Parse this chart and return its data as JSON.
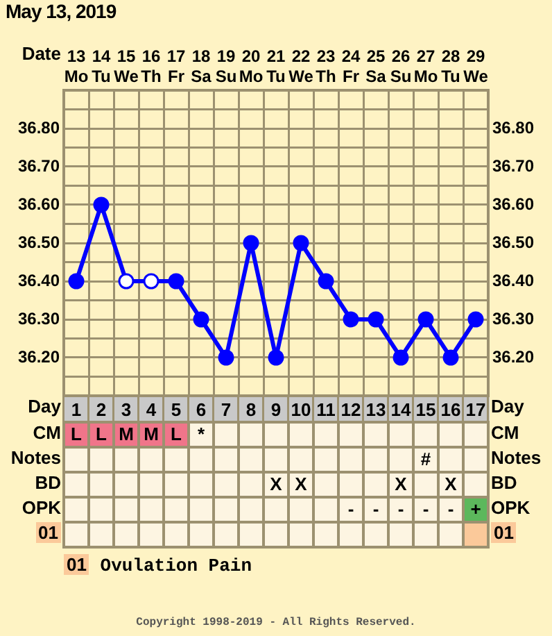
{
  "chart_data": [
    {
      "type": "line",
      "title": "May 13, 2019",
      "xlabel": "Day",
      "x2label": "Date",
      "x": [
        1,
        2,
        3,
        4,
        5,
        6,
        7,
        8,
        9,
        10,
        11,
        12,
        13,
        14,
        15,
        16,
        17
      ],
      "series": [
        {
          "color": "#0000ff",
          "colors": [
            "#0000ff",
            "#0000ff",
            "#ffffff",
            "#ffffff",
            "#0000ff",
            "#0000ff",
            "#0000ff",
            "#0000ff",
            "#0000ff",
            "#0000ff",
            "#0000ff",
            "#0000ff",
            "#0000ff",
            "#0000ff",
            "#0000ff",
            "#0000ff",
            "#0000ff"
          ],
          "values": [
            36.4,
            36.6,
            36.4,
            36.4,
            36.4,
            36.3,
            36.2,
            36.5,
            36.2,
            36.5,
            36.4,
            36.3,
            36.3,
            36.2,
            36.3,
            36.2,
            36.3
          ]
        }
      ],
      "xlim": [
        0.5,
        17.5
      ],
      "xticks": [
        {
          "value": 0.5,
          "label": null
        },
        1,
        {
          "value": 1.5,
          "label": null
        },
        2,
        {
          "value": 2.5,
          "label": null
        },
        3,
        {
          "value": 3.5,
          "label": null
        },
        4,
        {
          "value": 4.5,
          "label": null
        },
        5,
        {
          "value": 5.5,
          "label": null
        },
        6,
        {
          "value": 6.5,
          "label": null
        },
        7,
        {
          "value": 7.5,
          "label": null
        },
        8,
        {
          "value": 8.5,
          "label": null
        },
        9,
        {
          "value": 9.5,
          "label": null
        },
        10,
        {
          "value": 10.5,
          "label": null
        },
        11,
        {
          "value": 11.5,
          "label": null
        },
        12,
        {
          "value": 12.5,
          "label": null
        },
        13,
        {
          "value": 13.5,
          "label": null
        },
        14,
        {
          "value": 14.5,
          "label": null
        },
        15,
        {
          "value": 15.5,
          "label": null
        },
        16,
        {
          "value": 16.5,
          "label": null
        },
        17,
        {
          "value": 17.5,
          "label": null
        }
      ],
      "x2lim": [
        "2019-05-12T12:00",
        "2019-05-29T12:00"
      ],
      "x2ticks": [
        {
          "value": "2019-05-13",
          "label": "13 Mo"
        },
        {
          "value": "2019-05-14",
          "label": "14 Tu"
        },
        {
          "value": "2019-05-15",
          "label": "15 We"
        },
        {
          "value": "2019-05-16",
          "label": "16 Th"
        },
        {
          "value": "2019-05-17",
          "label": "17 Fr"
        },
        {
          "value": "2019-05-18",
          "label": "18 Sa"
        },
        {
          "value": "2019-05-19",
          "label": "19 Su"
        },
        {
          "value": "2019-05-20",
          "label": "20 Mo"
        },
        {
          "value": "2019-05-21",
          "label": "21 Tu"
        },
        {
          "value": "2019-05-22",
          "label": "22 We"
        },
        {
          "value": "2019-05-23",
          "label": "23 Th"
        },
        {
          "value": "2019-05-24",
          "label": "24 Fr"
        },
        {
          "value": "2019-05-25",
          "label": "25 Sa"
        },
        {
          "value": "2019-05-26",
          "label": "26 Su"
        },
        {
          "value": "2019-05-27",
          "label": "27 Mo"
        },
        {
          "value": "2019-05-28",
          "label": "28 Tu"
        },
        {
          "value": "2019-05-29",
          "label": "29 We"
        }
      ],
      "ylim": [
        36.1,
        36.9
      ],
      "yticks": [
        {
          "value": 36.15,
          "label": null
        },
        {
          "value": 36.2,
          "label": "36.20"
        },
        {
          "value": 36.25,
          "label": null
        },
        {
          "value": 36.3,
          "label": "36.30"
        },
        {
          "value": 36.35,
          "label": null
        },
        {
          "value": 36.4,
          "label": "36.40"
        },
        {
          "value": 36.45,
          "label": null
        },
        {
          "value": 36.5,
          "label": "36.50"
        },
        {
          "value": 36.55,
          "label": null
        },
        {
          "value": 36.6,
          "label": "36.60"
        },
        {
          "value": 36.65,
          "label": null
        },
        {
          "value": 36.7,
          "label": "36.70"
        },
        {
          "value": 36.75,
          "label": null
        },
        {
          "value": 36.8,
          "label": "36.80"
        },
        {
          "value": 36.85,
          "label": null
        }
      ],
      "y2lim": [
        36.1,
        36.9
      ],
      "y2ticks": [
        {
          "value": 36.15,
          "label": null
        },
        {
          "value": 36.2,
          "label": "36.20"
        },
        {
          "value": 36.25,
          "label": null
        },
        {
          "value": 36.3,
          "label": "36.30"
        },
        {
          "value": 36.35,
          "label": null
        },
        {
          "value": 36.4,
          "label": "36.40"
        },
        {
          "value": 36.45,
          "label": null
        },
        {
          "value": 36.5,
          "label": "36.50"
        },
        {
          "value": 36.55,
          "label": null
        },
        {
          "value": 36.6,
          "label": "36.60"
        },
        {
          "value": 36.65,
          "label": null
        },
        {
          "value": 36.7,
          "label": "36.70"
        },
        {
          "value": 36.75,
          "label": null
        },
        {
          "value": 36.8,
          "label": "36.80"
        },
        {
          "value": 36.85,
          "label": null
        }
      ],
      "grid": true,
      "marker": "circle",
      "line_style": "solid"
    },
    {
      "type": "other",
      "y_categories": [
        "CM",
        "Notes",
        "BD",
        "OPK",
        "01"
      ],
      "y2_categories": [
        "CM",
        "Notes",
        "BD",
        "OPK",
        "01"
      ],
      "cell_labels": [
        [
          "L",
          "L",
          "M",
          "M",
          "L",
          "*",
          null,
          null,
          null,
          null,
          null,
          null,
          null,
          null,
          null,
          null,
          null
        ],
        [
          null,
          null,
          null,
          null,
          null,
          null,
          null,
          null,
          null,
          null,
          null,
          null,
          null,
          null,
          "#",
          null,
          null
        ],
        [
          null,
          null,
          null,
          null,
          null,
          null,
          null,
          null,
          "X",
          "X",
          null,
          null,
          null,
          "X",
          null,
          "X",
          null
        ],
        [
          null,
          null,
          null,
          null,
          null,
          null,
          null,
          null,
          null,
          null,
          null,
          "-",
          "-",
          "-",
          "-",
          "-",
          "+"
        ],
        [
          null,
          null,
          null,
          null,
          null,
          null,
          null,
          null,
          null,
          null,
          null,
          null,
          null,
          null,
          null,
          null,
          null
        ]
      ],
      "colors": [
        [
          "#f0758a",
          "#f0758a",
          "#f0758a",
          "#f0758a",
          "#f0758a",
          null,
          null,
          null,
          null,
          null,
          null,
          null,
          null,
          null,
          null,
          null,
          null
        ],
        [
          null,
          null,
          null,
          null,
          null,
          null,
          null,
          null,
          null,
          null,
          null,
          null,
          null,
          null,
          null,
          null,
          null
        ],
        [
          null,
          null,
          null,
          null,
          null,
          null,
          null,
          null,
          null,
          null,
          null,
          null,
          null,
          null,
          null,
          null,
          null
        ],
        [
          null,
          null,
          null,
          null,
          null,
          null,
          null,
          null,
          null,
          null,
          null,
          null,
          null,
          null,
          null,
          null,
          "#5cb85c"
        ],
        [
          null,
          null,
          null,
          null,
          null,
          null,
          null,
          null,
          null,
          null,
          null,
          null,
          null,
          null,
          null,
          null,
          "#fbc99a"
        ]
      ],
      "annotations": [
        "01 Ovulation Pain",
        "Copyright 1998-2019 - All Rights Reserved."
      ]
    }
  ]
}
